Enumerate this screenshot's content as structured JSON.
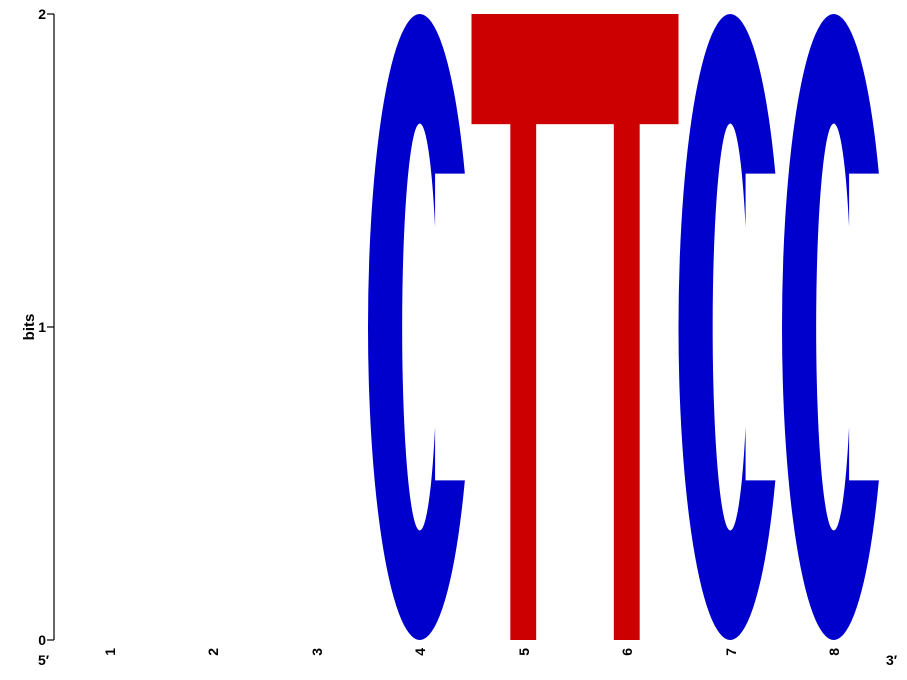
{
  "chart_data": {
    "type": "sequence-logo",
    "ylabel": "bits",
    "ylim": [
      0,
      2
    ],
    "yticks": [
      "0",
      "1",
      "2"
    ],
    "positions": [
      "1",
      "2",
      "3",
      "4",
      "5",
      "6",
      "7",
      "8"
    ],
    "five_prime_label": "5′",
    "three_prime_label": "3′",
    "letters": [
      {
        "position": 4,
        "letter": "C",
        "bits": 2.0
      },
      {
        "position": 5,
        "letter": "T",
        "bits": 2.0
      },
      {
        "position": 6,
        "letter": "T",
        "bits": 2.0
      },
      {
        "position": 7,
        "letter": "C",
        "bits": 2.0
      },
      {
        "position": 8,
        "letter": "C",
        "bits": 2.0
      }
    ],
    "colors": {
      "C": "#0000cc",
      "T": "#cc0000",
      "axis": "#000000"
    }
  }
}
